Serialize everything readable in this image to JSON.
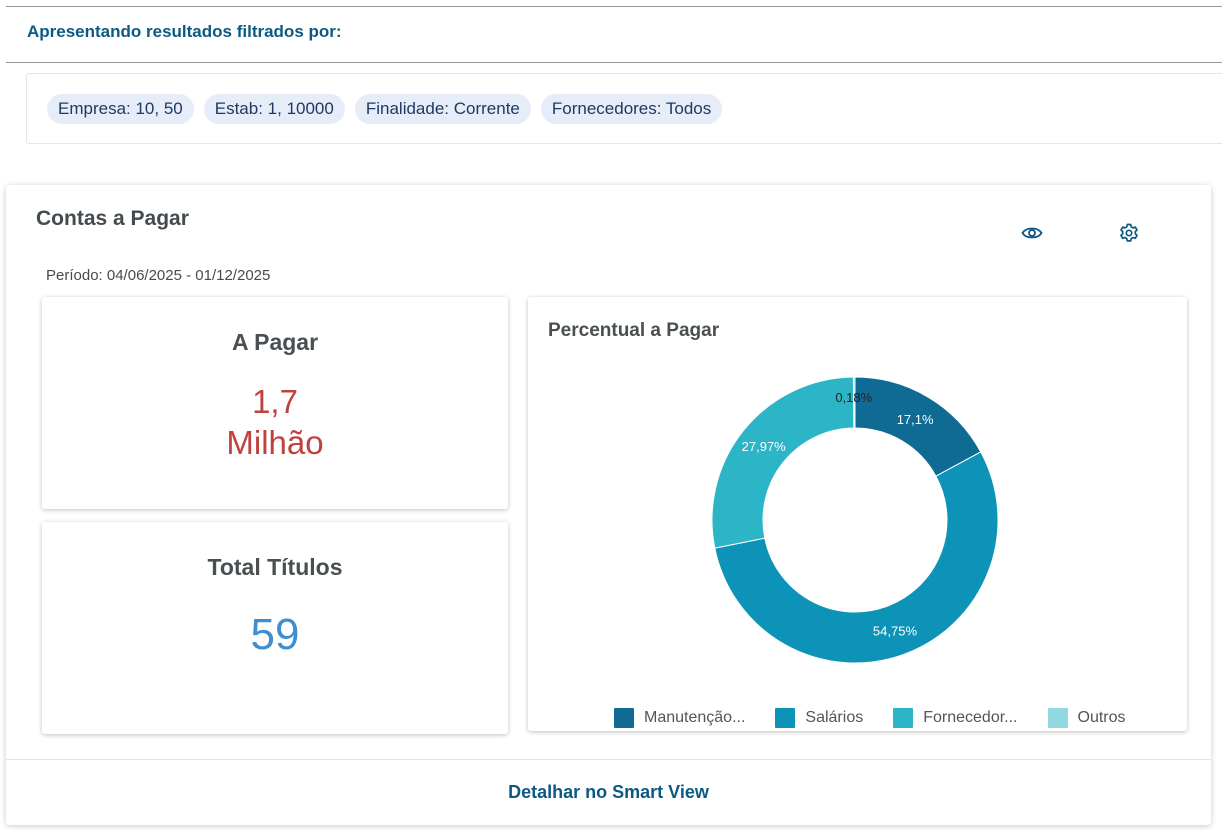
{
  "filters": {
    "heading": "Apresentando resultados filtrados por:",
    "chips": [
      "Empresa: 10, 50",
      "Estab: 1, 10000",
      "Finalidade: Corrente",
      "Fornecedores: Todos"
    ]
  },
  "panel": {
    "title": "Contas a Pagar",
    "period": "Período: 04/06/2025 - 01/12/2025",
    "icons": {
      "view": "eye-icon",
      "settings": "gear-icon"
    },
    "footer_link": "Detalhar no Smart View"
  },
  "kpis": {
    "a_pagar": {
      "title": "A Pagar",
      "value_line1": "1,7",
      "value_line2": "Milhão",
      "color": "#c0423f"
    },
    "total_titulos": {
      "title": "Total Títulos",
      "value": "59",
      "color": "#3d8fd1"
    }
  },
  "chart_data": {
    "type": "pie",
    "title": "Percentual a Pagar",
    "donut": true,
    "categories": [
      "Manutenção...",
      "Salários",
      "Fornecedor...",
      "Outros"
    ],
    "values": [
      17.1,
      54.75,
      27.97,
      0.18
    ],
    "labels": [
      "17,1%",
      "54,75%",
      "27,97%",
      "0,18%"
    ],
    "colors": [
      "#0f6b94",
      "#0e93b8",
      "#2cb5c6",
      "#90d9e2"
    ],
    "legend": "bottom"
  }
}
